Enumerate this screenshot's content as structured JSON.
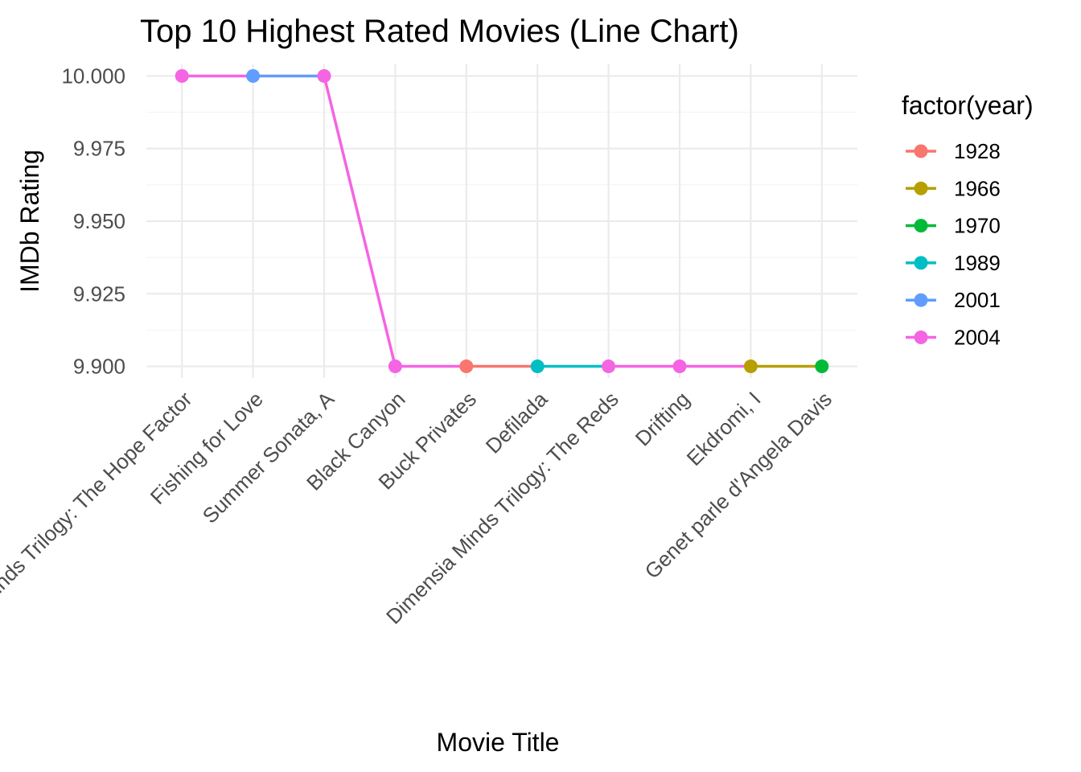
{
  "chart_data": {
    "type": "line",
    "title": "Top 10 Highest Rated Movies (Line Chart)",
    "xlabel": "Movie Title",
    "ylabel": "IMDb Rating",
    "categories": [
      "Dimensia Minds Trilogy: The Hope Factor",
      "Fishing for Love",
      "Summer Sonata, A",
      "Black Canyon",
      "Buck Privates",
      "Defilada",
      "Dimensia Minds Trilogy: The Reds",
      "Drifting",
      "Ekdromi, I",
      "Genet parle d'Angela Davis"
    ],
    "values": [
      10.0,
      10.0,
      10.0,
      9.9,
      9.9,
      9.9,
      9.9,
      9.9,
      9.9,
      9.9
    ],
    "point_year": [
      "2004",
      "2001",
      "2004",
      "2004",
      "1928",
      "1989",
      "2004",
      "2004",
      "1966",
      "1970"
    ],
    "ylim": [
      9.896,
      10.004
    ],
    "yticks": [
      9.9,
      9.925,
      9.95,
      9.975,
      10.0
    ],
    "ytick_labels": [
      "9.900",
      "9.925",
      "9.950",
      "9.975",
      "10.000"
    ],
    "grid": true,
    "legend": {
      "title": "factor(year)",
      "placement": "right",
      "entries": [
        {
          "name": "1928",
          "color": "#F8766D"
        },
        {
          "name": "1966",
          "color": "#B79F00"
        },
        {
          "name": "1970",
          "color": "#00BA38"
        },
        {
          "name": "1989",
          "color": "#00BFC4"
        },
        {
          "name": "2001",
          "color": "#619CFF"
        },
        {
          "name": "2004",
          "color": "#F564E3"
        }
      ]
    }
  }
}
